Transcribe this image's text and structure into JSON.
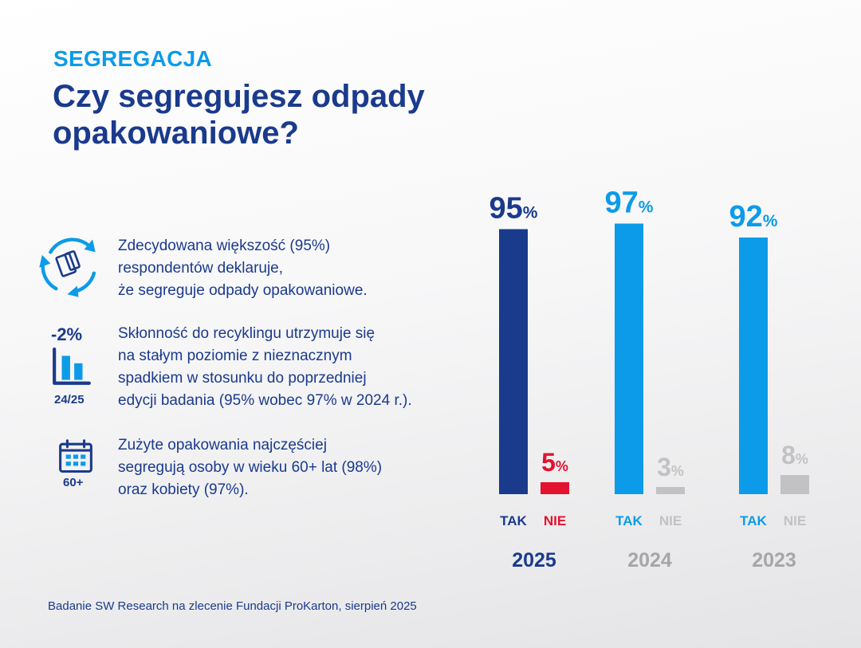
{
  "kicker": "SEGREGACJA",
  "title": "Czy segregujesz odpady opakowaniowe?",
  "points": [
    {
      "icon": "recycle-icon",
      "text_lines": [
        "Zdecydowana większość (95%)",
        "respondentów deklaruje,",
        "że segreguje odpady opakowaniowe."
      ]
    },
    {
      "icon": "bar-chart-icon",
      "badge_top": "-2%",
      "badge_bottom": "24/25",
      "text_lines": [
        "Skłonność do recyklingu utrzymuje się",
        "na stałym poziomie z nieznacznym",
        "spadkiem w stosunku do poprzedniej",
        "edycji badania (95% wobec 97% w 2024 r.)."
      ]
    },
    {
      "icon": "calendar-icon",
      "badge_bottom": "60+",
      "text_lines": [
        "Zużyte opakowania najczęściej",
        "segregują osoby w wieku 60+ lat (98%)",
        "oraz kobiety (97%)."
      ]
    }
  ],
  "source": "Badanie SW Research na zlecenie Fundacji ProKarton, sierpień 2025",
  "colors": {
    "navy": "#1a3a8c",
    "blue": "#0c9be8",
    "red": "#e3122f",
    "gray": "#c2c2c4",
    "yearGray": "#a6a6a8"
  },
  "chart_data": {
    "type": "bar",
    "unit": "%",
    "categories": [
      "TAK",
      "NIE"
    ],
    "ylim": [
      0,
      100
    ],
    "groups": [
      {
        "year": "2025",
        "values": [
          95,
          5
        ],
        "colors": [
          "#1a3a8c",
          "#e3122f"
        ],
        "label_colors": [
          "#1a3a8c",
          "#e3122f"
        ],
        "year_color": "#1a3a8c"
      },
      {
        "year": "2024",
        "values": [
          97,
          3
        ],
        "colors": [
          "#0c9be8",
          "#c2c2c4"
        ],
        "label_colors": [
          "#0c9be8",
          "#c2c2c4"
        ],
        "year_color": "#a6a6a8"
      },
      {
        "year": "2023",
        "values": [
          92,
          8
        ],
        "colors": [
          "#0c9be8",
          "#c2c2c4"
        ],
        "label_colors": [
          "#0c9be8",
          "#c2c2c4"
        ],
        "year_color": "#a6a6a8"
      }
    ]
  }
}
